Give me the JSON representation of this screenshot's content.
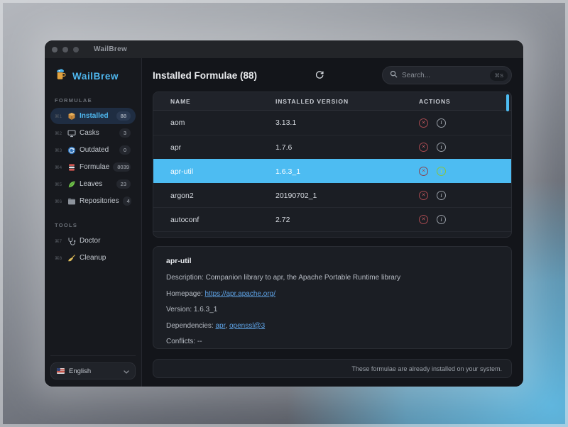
{
  "window": {
    "title": "WailBrew"
  },
  "sidebar": {
    "brand": "WailBrew",
    "sections": [
      {
        "label": "FORMULAE",
        "items": [
          {
            "shortcut": "⌘1",
            "icon": "package-icon",
            "label": "Installed",
            "badge": "88",
            "selected": true
          },
          {
            "shortcut": "⌘2",
            "icon": "display-icon",
            "label": "Casks",
            "badge": "3",
            "selected": false
          },
          {
            "shortcut": "⌘3",
            "icon": "update-icon",
            "label": "Outdated",
            "badge": "0",
            "selected": false
          },
          {
            "shortcut": "⌘4",
            "icon": "stack-icon",
            "label": "Formulae",
            "badge": "8039",
            "selected": false
          },
          {
            "shortcut": "⌘5",
            "icon": "leaf-icon",
            "label": "Leaves",
            "badge": "23",
            "selected": false
          },
          {
            "shortcut": "⌘6",
            "icon": "folder-icon",
            "label": "Repositories",
            "badge": "4",
            "selected": false
          }
        ]
      },
      {
        "label": "TOOLS",
        "items": [
          {
            "shortcut": "⌘7",
            "icon": "stethoscope-icon",
            "label": "Doctor",
            "badge": null,
            "selected": false
          },
          {
            "shortcut": "⌘8",
            "icon": "broom-icon",
            "label": "Cleanup",
            "badge": null,
            "selected": false
          }
        ]
      }
    ],
    "language": {
      "label": "English",
      "icon": "us-flag-icon"
    }
  },
  "header": {
    "title": "Installed Formulae (88)",
    "search_placeholder": "Search...",
    "search_shortcut": "⌘S"
  },
  "table": {
    "columns": [
      "NAME",
      "INSTALLED VERSION",
      "ACTIONS"
    ],
    "rows": [
      {
        "name": "aom",
        "version": "3.13.1",
        "selected": false
      },
      {
        "name": "apr",
        "version": "1.7.6",
        "selected": false
      },
      {
        "name": "apr-util",
        "version": "1.6.3_1",
        "selected": true
      },
      {
        "name": "argon2",
        "version": "20190702_1",
        "selected": false
      },
      {
        "name": "autoconf",
        "version": "2.72",
        "selected": false
      }
    ]
  },
  "details": {
    "title": "apr-util",
    "description_label": "Description: ",
    "description": "Companion library to apr, the Apache Portable Runtime library",
    "homepage_label": "Homepage: ",
    "homepage": "https://apr.apache.org/",
    "version_label": "Version: ",
    "version": "1.6.3_1",
    "dependencies_label": "Dependencies: ",
    "dependencies": [
      "apr",
      "openssl@3"
    ],
    "conflicts_label": "Conflicts: ",
    "conflicts": "--"
  },
  "footer": {
    "status": "These formulae are already installed on your system."
  },
  "colors": {
    "accent": "#4dbcf2",
    "brand": "#4fb8f0",
    "link": "#5ea3e6",
    "danger": "#c25a60",
    "success": "#8ac43e"
  }
}
